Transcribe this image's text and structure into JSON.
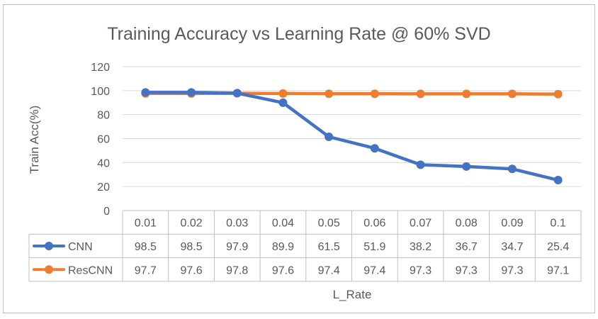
{
  "chart_data": {
    "type": "line",
    "title": "Training Accuracy vs Learning Rate @ 60% SVD",
    "xlabel": "L_Rate",
    "ylabel": "Train Acc(%)",
    "ylim": [
      0,
      120
    ],
    "yticks": [
      "0",
      "20",
      "40",
      "60",
      "80",
      "100",
      "120"
    ],
    "grid": true,
    "legend": "data-table",
    "categories": [
      "0.01",
      "0.02",
      "0.03",
      "0.04",
      "0.05",
      "0.06",
      "0.07",
      "0.08",
      "0.09",
      "0.1"
    ],
    "series": [
      {
        "name": "CNN",
        "color": "#4472c4",
        "values": [
          98.5,
          98.5,
          97.9,
          89.9,
          61.5,
          51.9,
          38.2,
          36.7,
          34.7,
          25.4
        ],
        "labels": [
          "98.5",
          "98.5",
          "97.9",
          "89.9",
          "61.5",
          "51.9",
          "38.2",
          "36.7",
          "34.7",
          "25.4"
        ]
      },
      {
        "name": "ResCNN",
        "color": "#ed7d31",
        "values": [
          97.7,
          97.6,
          97.8,
          97.6,
          97.4,
          97.4,
          97.3,
          97.3,
          97.3,
          97.1
        ],
        "labels": [
          "97.7",
          "97.6",
          "97.8",
          "97.6",
          "97.4",
          "97.4",
          "97.3",
          "97.3",
          "97.3",
          "97.1"
        ]
      }
    ]
  }
}
